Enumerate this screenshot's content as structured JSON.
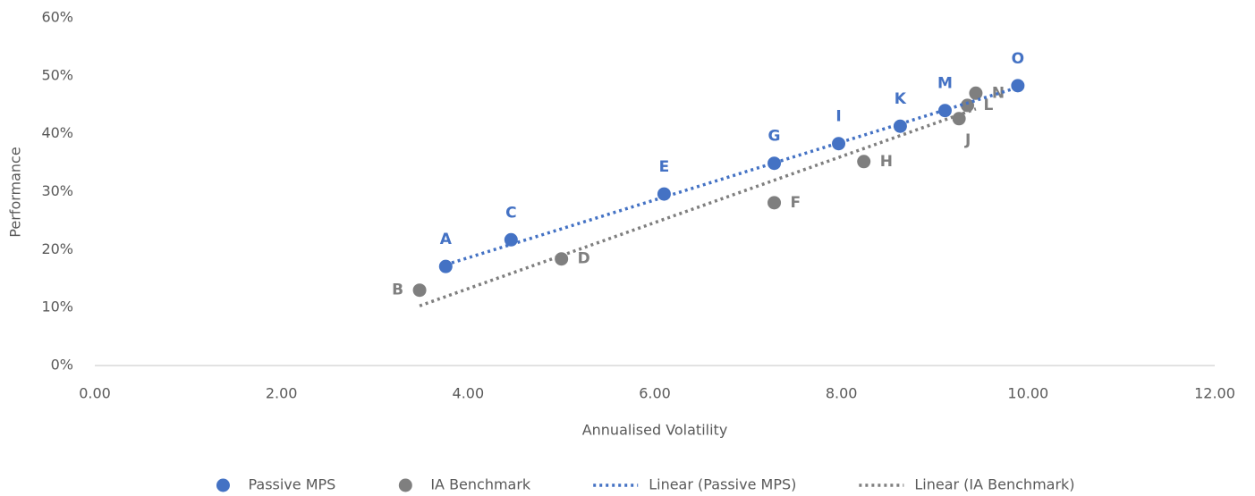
{
  "chart_data": {
    "type": "scatter",
    "x_label": "Annualised Volatility",
    "y_label": "Performance",
    "xlim": [
      0,
      12
    ],
    "ylim": [
      0,
      60
    ],
    "xticks": [
      {
        "value": 0,
        "label": "0.00"
      },
      {
        "value": 2,
        "label": "2.00"
      },
      {
        "value": 4,
        "label": "4.00"
      },
      {
        "value": 6,
        "label": "6.00"
      },
      {
        "value": 8,
        "label": "8.00"
      },
      {
        "value": 10,
        "label": "10.00"
      },
      {
        "value": 12,
        "label": "12.00"
      }
    ],
    "yticks": [
      {
        "value": 0,
        "label": "0%"
      },
      {
        "value": 10,
        "label": "10%"
      },
      {
        "value": 20,
        "label": "20%"
      },
      {
        "value": 30,
        "label": "30%"
      },
      {
        "value": 40,
        "label": "40%"
      },
      {
        "value": 50,
        "label": "50%"
      },
      {
        "value": 60,
        "label": "60%"
      }
    ],
    "legend_position": "bottom",
    "series": [
      {
        "name": "Passive MPS",
        "type": "scatter",
        "color": "#4472c4",
        "x": [
          3.76,
          4.46,
          6.1,
          7.28,
          7.97,
          8.63,
          9.11,
          9.89
        ],
        "values": [
          17.1,
          21.7,
          29.6,
          34.9,
          38.3,
          41.3,
          44.0,
          48.3
        ],
        "labels": [
          "A",
          "C",
          "E",
          "G",
          "I",
          "K",
          "M",
          "O"
        ],
        "label_positions": [
          "above",
          "above",
          "above",
          "above",
          "above",
          "above",
          "above",
          "above"
        ]
      },
      {
        "name": "IA Benchmark",
        "type": "scatter",
        "color": "#7f7f7f",
        "x": [
          3.48,
          5.0,
          7.28,
          8.24,
          9.26,
          9.35,
          9.44
        ],
        "values": [
          13.0,
          18.4,
          28.1,
          35.2,
          42.6,
          44.9,
          47.0
        ],
        "labels": [
          "B",
          "D",
          "F",
          "H",
          "J",
          "L",
          "N"
        ],
        "label_positions": [
          "left",
          "right",
          "right",
          "right",
          "below",
          "right",
          "right"
        ]
      },
      {
        "name": "Linear (Passive MPS)",
        "type": "line",
        "line_style": "dotted",
        "color": "#4472c4",
        "x": [
          3.76,
          9.89
        ],
        "values": [
          17.4,
          48.0
        ]
      },
      {
        "name": "Linear (IA Benchmark)",
        "type": "line",
        "line_style": "dotted",
        "color": "#7f7f7f",
        "x": [
          3.48,
          9.44
        ],
        "values": [
          10.3,
          44.3
        ]
      }
    ]
  }
}
